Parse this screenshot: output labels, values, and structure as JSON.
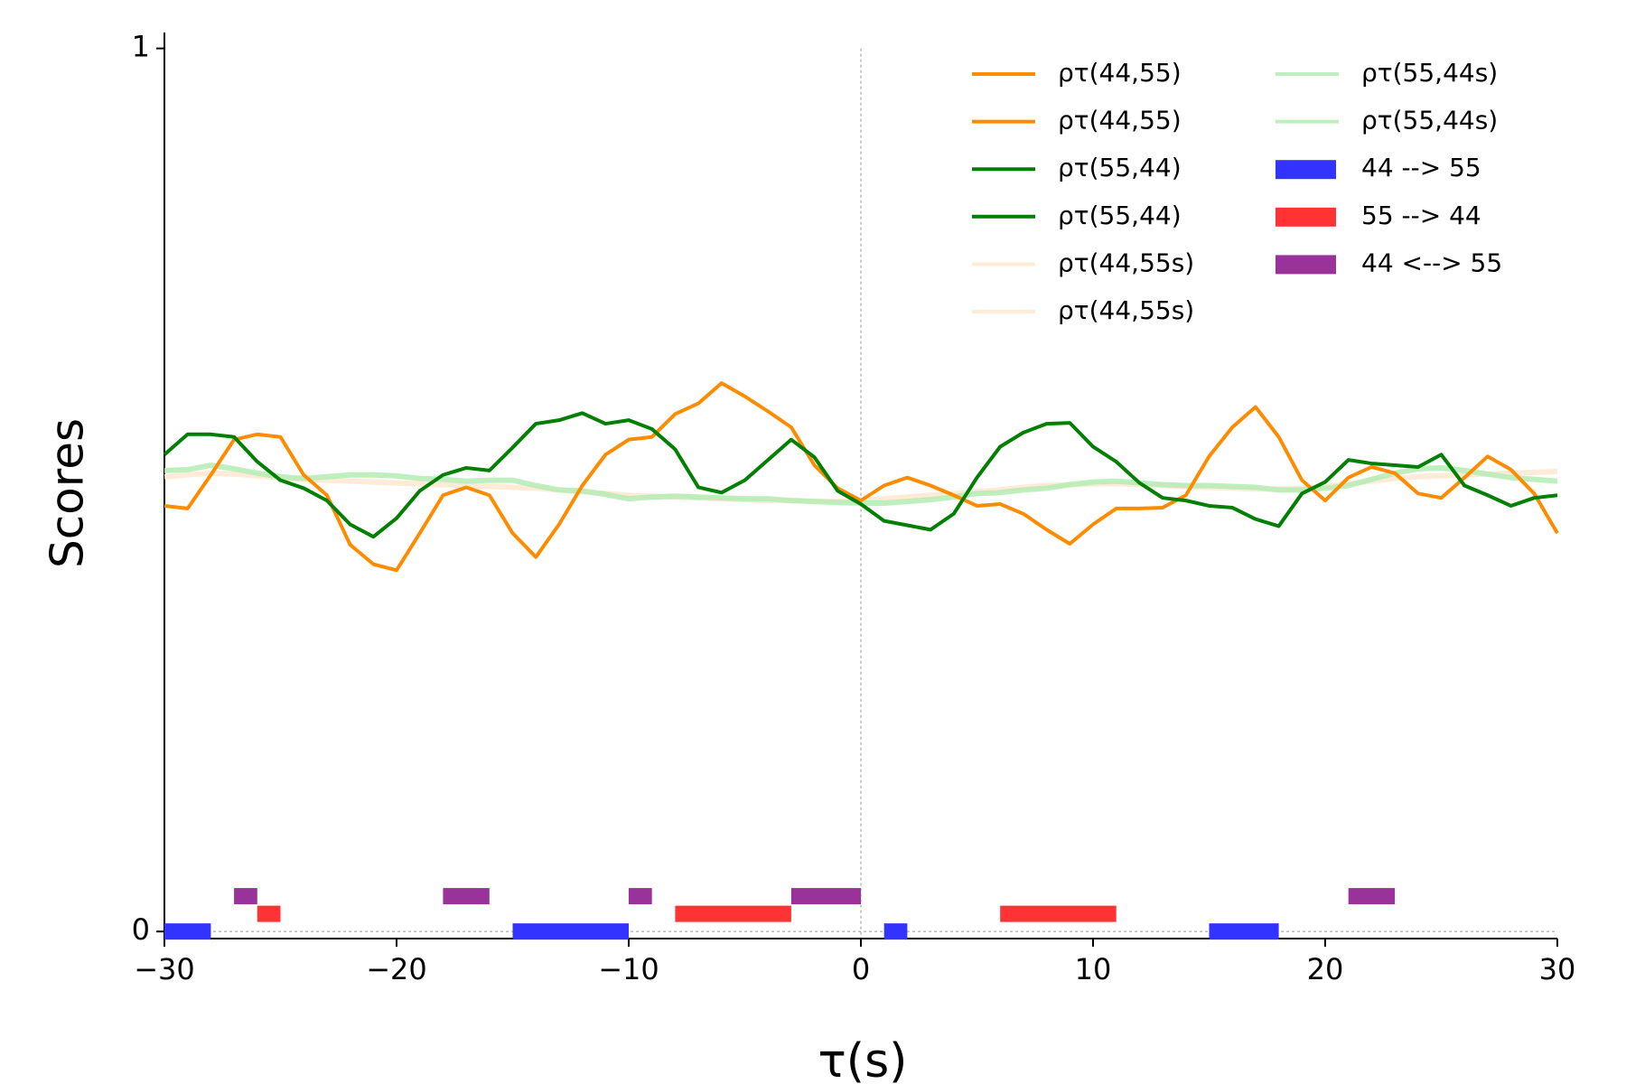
{
  "chart_data": {
    "type": "line",
    "xlabel": "τ(s)",
    "ylabel": "Scores",
    "xlim": [
      -30,
      30
    ],
    "ylim": [
      -0.008,
      1.018
    ],
    "xticks": [
      {
        "value": -30,
        "label": "−30"
      },
      {
        "value": -20,
        "label": "−20"
      },
      {
        "value": -10,
        "label": "−10"
      },
      0,
      10,
      20,
      30
    ],
    "yticks": [
      0,
      1
    ],
    "x": [
      -30,
      -29,
      -28,
      -27,
      -26,
      -25,
      -24,
      -23,
      -22,
      -21,
      -20,
      -19,
      -18,
      -17,
      -16,
      -15,
      -14,
      -13,
      -12,
      -11,
      -10,
      -9,
      -8,
      -7,
      -6,
      -5,
      -4,
      -3,
      -2,
      -1,
      0,
      1,
      2,
      3,
      4,
      5,
      6,
      7,
      8,
      9,
      10,
      11,
      12,
      13,
      14,
      15,
      16,
      17,
      18,
      19,
      20,
      21,
      22,
      23,
      24,
      25,
      26,
      27,
      28,
      29,
      30
    ],
    "series": [
      {
        "name": "ρτ(44,55)",
        "color": "#ff8c00",
        "values": [
          0.482,
          0.479,
          0.517,
          0.557,
          0.563,
          0.56,
          0.517,
          0.494,
          0.438,
          0.416,
          0.409,
          0.451,
          0.494,
          0.503,
          0.494,
          0.451,
          0.424,
          0.461,
          0.505,
          0.54,
          0.557,
          0.56,
          0.586,
          0.598,
          0.621,
          0.606,
          0.589,
          0.571,
          0.528,
          0.502,
          0.488,
          0.505,
          0.514,
          0.505,
          0.494,
          0.482,
          0.484,
          0.473,
          0.455,
          0.439,
          0.461,
          0.479,
          0.479,
          0.48,
          0.494,
          0.538,
          0.571,
          0.594,
          0.56,
          0.511,
          0.488,
          0.514,
          0.526,
          0.519,
          0.496,
          0.491,
          0.514,
          0.538,
          0.523,
          0.496,
          0.451
        ]
      },
      {
        "name": "ρτ(55,44)",
        "color": "#007f00",
        "values": [
          0.54,
          0.563,
          0.563,
          0.56,
          0.532,
          0.511,
          0.502,
          0.488,
          0.461,
          0.447,
          0.468,
          0.499,
          0.517,
          0.525,
          0.522,
          0.548,
          0.575,
          0.579,
          0.587,
          0.575,
          0.579,
          0.569,
          0.546,
          0.503,
          0.497,
          0.511,
          0.534,
          0.557,
          0.537,
          0.499,
          0.484,
          0.465,
          0.46,
          0.455,
          0.473,
          0.514,
          0.549,
          0.565,
          0.575,
          0.576,
          0.549,
          0.532,
          0.508,
          0.491,
          0.488,
          0.482,
          0.48,
          0.467,
          0.459,
          0.496,
          0.509,
          0.534,
          0.53,
          0.528,
          0.526,
          0.54,
          0.505,
          0.494,
          0.482,
          0.491,
          0.494
        ]
      },
      {
        "name": "ρτ(44,55s)",
        "color": "#ffe8d0",
        "values": [
          0.515,
          0.517,
          0.519,
          0.518,
          0.516,
          0.514,
          0.512,
          0.511,
          0.51,
          0.509,
          0.508,
          0.507,
          0.506,
          0.505,
          0.504,
          0.503,
          0.502,
          0.5,
          0.498,
          0.496,
          0.494,
          0.493,
          0.492,
          0.491,
          0.49,
          0.489,
          0.488,
          0.488,
          0.487,
          0.487,
          0.488,
          0.49,
          0.492,
          0.494,
          0.496,
          0.498,
          0.5,
          0.503,
          0.505,
          0.506,
          0.507,
          0.507,
          0.506,
          0.505,
          0.504,
          0.503,
          0.502,
          0.501,
          0.501,
          0.502,
          0.504,
          0.507,
          0.51,
          0.513,
          0.515,
          0.516,
          0.517,
          0.518,
          0.519,
          0.52,
          0.521
        ]
      },
      {
        "name": "ρτ(55,44s)",
        "color": "#b4ecb4",
        "values": [
          0.522,
          0.523,
          0.528,
          0.524,
          0.519,
          0.515,
          0.513,
          0.515,
          0.517,
          0.517,
          0.516,
          0.513,
          0.512,
          0.51,
          0.511,
          0.511,
          0.505,
          0.5,
          0.499,
          0.495,
          0.49,
          0.492,
          0.493,
          0.492,
          0.491,
          0.49,
          0.49,
          0.488,
          0.487,
          0.486,
          0.485,
          0.485,
          0.487,
          0.489,
          0.492,
          0.496,
          0.497,
          0.5,
          0.502,
          0.506,
          0.509,
          0.51,
          0.508,
          0.506,
          0.505,
          0.505,
          0.504,
          0.503,
          0.5,
          0.5,
          0.502,
          0.505,
          0.512,
          0.519,
          0.524,
          0.525,
          0.522,
          0.518,
          0.514,
          0.512,
          0.51
        ]
      }
    ],
    "intervals": [
      {
        "name": "44 --> 55",
        "color": "#3333ff",
        "level": 0,
        "spans": [
          [
            -30,
            -28
          ],
          [
            -15,
            -10
          ],
          [
            1,
            2
          ],
          [
            15,
            18
          ]
        ]
      },
      {
        "name": "55 --> 44",
        "color": "#ff3333",
        "level": 0.02,
        "spans": [
          [
            -26,
            -25
          ],
          [
            -8,
            -3
          ],
          [
            6,
            11
          ]
        ]
      },
      {
        "name": "44 <--> 55",
        "color": "#993399",
        "level": 0.04,
        "spans": [
          [
            -27,
            -26
          ],
          [
            -18,
            -16
          ],
          [
            -10,
            -9
          ],
          [
            -3,
            0
          ],
          [
            21,
            23
          ]
        ]
      }
    ]
  }
}
